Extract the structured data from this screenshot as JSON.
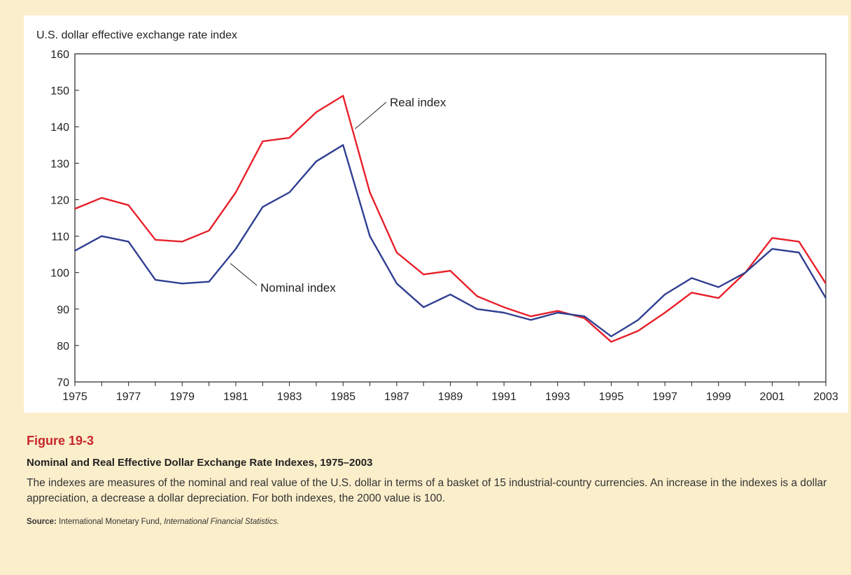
{
  "chart_data": {
    "type": "line",
    "title": "",
    "ylabel": "U.S. dollar effective exchange rate index",
    "xlabel": "",
    "xlim": [
      1975,
      2003
    ],
    "ylim": [
      70,
      160
    ],
    "y_ticks": [
      70,
      80,
      90,
      100,
      110,
      120,
      130,
      140,
      150,
      160
    ],
    "x_ticks": [
      1975,
      1977,
      1979,
      1981,
      1983,
      1985,
      1987,
      1989,
      1991,
      1993,
      1995,
      1997,
      1999,
      2001,
      2003
    ],
    "grid": false,
    "x": [
      1975,
      1976,
      1977,
      1978,
      1979,
      1980,
      1981,
      1982,
      1983,
      1984,
      1985,
      1986,
      1987,
      1988,
      1989,
      1990,
      1991,
      1992,
      1993,
      1994,
      1995,
      1996,
      1997,
      1998,
      1999,
      2000,
      2001,
      2002,
      2003
    ],
    "series": [
      {
        "name": "Real index",
        "color": "#e8202a",
        "values": [
          117.5,
          120.5,
          118.5,
          109,
          108.5,
          111.5,
          122,
          136,
          137,
          144,
          148.5,
          122,
          105.5,
          99.5,
          100.5,
          93.5,
          90.5,
          88,
          89.5,
          87.5,
          81,
          84,
          89,
          94.5,
          93,
          100,
          109.5,
          108.5,
          97
        ]
      },
      {
        "name": "Nominal index",
        "color": "#2f3f92",
        "values": [
          106,
          110,
          108.5,
          98,
          97,
          97.5,
          106.5,
          118,
          122,
          130.5,
          135,
          110,
          97,
          90.5,
          94,
          90,
          89,
          87,
          89,
          88,
          82.5,
          87,
          94,
          98.5,
          96,
          100,
          106.5,
          105.5,
          93
        ]
      }
    ],
    "annotations": [
      {
        "text": "Real index",
        "series": "Real index"
      },
      {
        "text": "Nominal index",
        "series": "Nominal index"
      }
    ]
  },
  "caption": {
    "figure_number": "Figure 19-3",
    "title": "Nominal and Real Effective Dollar Exchange Rate Indexes, 1975–2003",
    "description": "The indexes are measures of the nominal and real value of the U.S. dollar in terms of a basket of 15 industrial-country currencies. An increase in the indexes is a dollar appreciation, a decrease a dollar depreciation. For both indexes, the 2000 value is 100.",
    "source_label": "Source:",
    "source_text": "International Monetary Fund,",
    "source_italic": "International Financial Statistics."
  }
}
